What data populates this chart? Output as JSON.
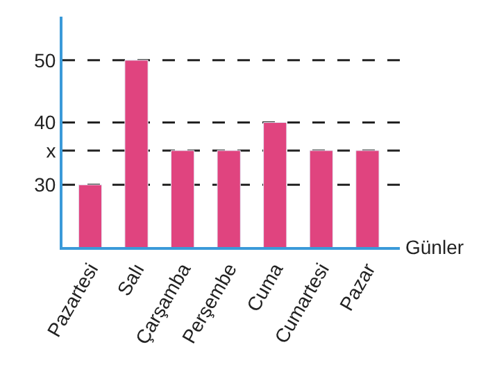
{
  "chart_data": {
    "type": "bar",
    "xlabel": "Günler",
    "categories": [
      "Pazartesi",
      "Salı",
      "Çarşamba",
      "Perşembe",
      "Cuma",
      "Cumartesi",
      "Pazar"
    ],
    "values": [
      30,
      50,
      35.5,
      35.5,
      40,
      35.5,
      35.5
    ],
    "color": "#e0447f",
    "ylim": [
      20,
      57
    ],
    "yticks": [
      30,
      {
        "value": 35.5,
        "label": "x"
      },
      40,
      50
    ],
    "ref_lines": [
      {
        "axis": "y",
        "value": 50,
        "line_style": "dashed",
        "color": "#222222"
      },
      {
        "axis": "y",
        "value": 40,
        "line_style": "dashed",
        "color": "#222222"
      },
      {
        "axis": "y",
        "value": 35.5,
        "line_style": "dashed",
        "color": "#222222"
      },
      {
        "axis": "y",
        "value": 30,
        "line_style": "dashed",
        "color": "#222222"
      }
    ],
    "grid": false
  }
}
